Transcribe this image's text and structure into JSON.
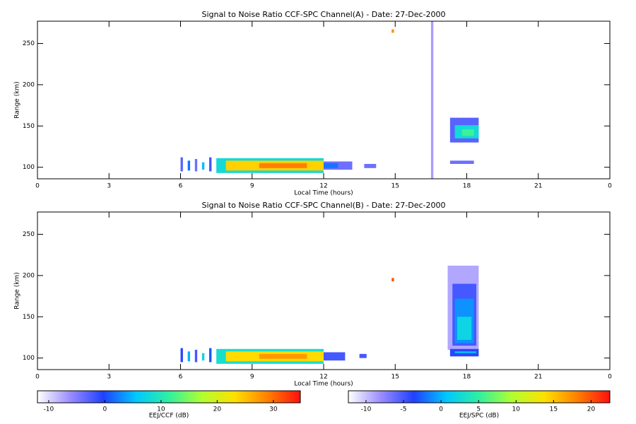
{
  "chart_data": [
    {
      "type": "heatmap",
      "title": "Signal to Noise Ratio CCF-SPC Channel(A) - Date: 27-Dec-2000",
      "xlabel": "Local Time (hours)",
      "ylabel": "Range (km)",
      "xlim": [
        0,
        24
      ],
      "xticks": [
        0,
        3,
        6,
        9,
        12,
        15,
        18,
        21,
        {
          "value": 24,
          "label": "0"
        }
      ],
      "ylim": [
        86,
        277
      ],
      "yticks": [
        100,
        150,
        200,
        250
      ],
      "cells": [
        {
          "x": [
            6.0,
            6.1
          ],
          "y": [
            95,
            112
          ],
          "value": -3
        },
        {
          "x": [
            6.3,
            6.4
          ],
          "y": [
            96,
            108
          ],
          "value": 2
        },
        {
          "x": [
            6.6,
            6.7
          ],
          "y": [
            95,
            110
          ],
          "value": -4
        },
        {
          "x": [
            6.9,
            7.0
          ],
          "y": [
            97,
            106
          ],
          "value": 5
        },
        {
          "x": [
            7.2,
            7.3
          ],
          "y": [
            95,
            112
          ],
          "value": -2
        },
        {
          "x": [
            7.5,
            12.0
          ],
          "y": [
            93,
            111
          ],
          "value": 8
        },
        {
          "x": [
            7.9,
            12.0
          ],
          "y": [
            96,
            108
          ],
          "value": 24
        },
        {
          "x": [
            9.3,
            11.3
          ],
          "y": [
            99,
            105
          ],
          "value": 29
        },
        {
          "x": [
            12.0,
            13.2
          ],
          "y": [
            97,
            107
          ],
          "value": -4
        },
        {
          "x": [
            12.0,
            12.6
          ],
          "y": [
            99,
            105
          ],
          "value": 2
        },
        {
          "x": [
            13.7,
            14.2
          ],
          "y": [
            99,
            104
          ],
          "value": -4
        },
        {
          "x": [
            14.85,
            14.95
          ],
          "y": [
            263,
            267
          ],
          "value": 28
        },
        {
          "x": [
            16.5,
            16.6
          ],
          "y": [
            86,
            277
          ],
          "value": -7
        },
        {
          "x": [
            17.3,
            18.5
          ],
          "y": [
            130,
            160
          ],
          "value": -3
        },
        {
          "x": [
            17.5,
            18.5
          ],
          "y": [
            135,
            151
          ],
          "value": 8
        },
        {
          "x": [
            17.8,
            18.3
          ],
          "y": [
            138,
            146
          ],
          "value": 12
        },
        {
          "x": [
            17.3,
            18.3
          ],
          "y": [
            104,
            108
          ],
          "value": -4
        }
      ]
    },
    {
      "type": "heatmap",
      "title": "Signal to Noise Ratio CCF-SPC Channel(B) - Date: 27-Dec-2000",
      "xlabel": "Local Time (hours)",
      "ylabel": "Range (km)",
      "xlim": [
        0,
        24
      ],
      "xticks": [
        0,
        3,
        6,
        9,
        12,
        15,
        18,
        21,
        {
          "value": 24,
          "label": "0"
        }
      ],
      "ylim": [
        86,
        277
      ],
      "yticks": [
        100,
        150,
        200,
        250
      ],
      "cells": [
        {
          "x": [
            6.0,
            6.1
          ],
          "y": [
            95,
            112
          ],
          "value": -4
        },
        {
          "x": [
            6.3,
            6.4
          ],
          "y": [
            96,
            108
          ],
          "value": 0
        },
        {
          "x": [
            6.6,
            6.7
          ],
          "y": [
            95,
            110
          ],
          "value": -5
        },
        {
          "x": [
            6.9,
            7.0
          ],
          "y": [
            97,
            106
          ],
          "value": 2
        },
        {
          "x": [
            7.2,
            7.3
          ],
          "y": [
            95,
            112
          ],
          "value": -3
        },
        {
          "x": [
            7.5,
            12.0
          ],
          "y": [
            93,
            111
          ],
          "value": 3
        },
        {
          "x": [
            7.9,
            12.0
          ],
          "y": [
            96,
            108
          ],
          "value": 14
        },
        {
          "x": [
            9.3,
            11.3
          ],
          "y": [
            99,
            105
          ],
          "value": 17
        },
        {
          "x": [
            12.0,
            12.9
          ],
          "y": [
            97,
            107
          ],
          "value": -5
        },
        {
          "x": [
            13.5,
            13.8
          ],
          "y": [
            100,
            105
          ],
          "value": -5
        },
        {
          "x": [
            14.85,
            14.95
          ],
          "y": [
            193,
            197
          ],
          "value": 20
        },
        {
          "x": [
            17.2,
            18.5
          ],
          "y": [
            110,
            212
          ],
          "value": -9
        },
        {
          "x": [
            17.4,
            18.4
          ],
          "y": [
            115,
            190
          ],
          "value": -5
        },
        {
          "x": [
            17.5,
            18.3
          ],
          "y": [
            118,
            172
          ],
          "value": -1
        },
        {
          "x": [
            17.6,
            18.2
          ],
          "y": [
            122,
            150
          ],
          "value": 2
        },
        {
          "x": [
            17.3,
            18.5
          ],
          "y": [
            102,
            111
          ],
          "value": -4
        },
        {
          "x": [
            17.5,
            18.4
          ],
          "y": [
            106,
            108
          ],
          "value": 1
        }
      ]
    },
    {
      "type": "colorbar",
      "label": "EEJ/CCF (dB)",
      "lim": [
        -12,
        34.8
      ],
      "ticks": [
        -10,
        0,
        10,
        20,
        30
      ],
      "colormap": [
        "#ffffff",
        "#9a8cff",
        "#2040ff",
        "#00c8ff",
        "#30f0a0",
        "#b0ff30",
        "#ffe000",
        "#ff8000",
        "#ff1010"
      ]
    },
    {
      "type": "colorbar",
      "label": "EEJ/SPC (dB)",
      "lim": [
        -12.35,
        22.5
      ],
      "ticks": [
        -10,
        -5,
        0,
        5,
        10,
        15,
        20
      ],
      "colormap": [
        "#ffffff",
        "#9a8cff",
        "#2040ff",
        "#00c8ff",
        "#30f0a0",
        "#b0ff30",
        "#ffe000",
        "#ff8000",
        "#ff1010"
      ]
    }
  ]
}
